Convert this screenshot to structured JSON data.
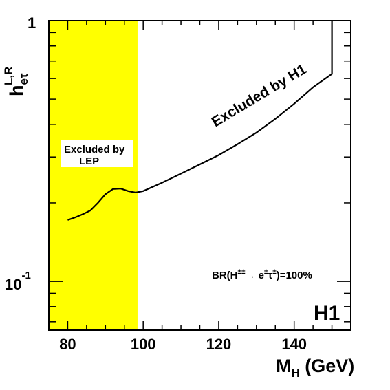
{
  "chart_data": {
    "type": "line",
    "xlabel": {
      "main": "M",
      "sub": "H",
      "suffix": " (GeV)"
    },
    "ylabel": {
      "main": "h",
      "sub": "eτ",
      "sup": "L,R"
    },
    "xlim": [
      75,
      155
    ],
    "ylim": [
      0.065,
      1.0
    ],
    "yscale": "log",
    "x_ticks": [
      80,
      100,
      120,
      140
    ],
    "x_tick_labels": [
      "80",
      "100",
      "120",
      "140"
    ],
    "y_major_labels": [
      {
        "value": 1.0,
        "base": "1",
        "exp": ""
      },
      {
        "value": 0.1,
        "base": "10",
        "exp": "-1"
      }
    ],
    "grid": false,
    "excluded_band": {
      "x_from": 75,
      "x_to": 98.5,
      "color": "#ffff00"
    },
    "series": [
      {
        "x": [
          80,
          82,
          84,
          86,
          88,
          90,
          92,
          94,
          96,
          98,
          100,
          105,
          110,
          115,
          120,
          125,
          130,
          135,
          140,
          145,
          150,
          150,
          150
        ],
        "y": [
          0.172,
          0.176,
          0.181,
          0.187,
          0.2,
          0.216,
          0.226,
          0.227,
          0.222,
          0.219,
          0.222,
          0.239,
          0.259,
          0.281,
          0.305,
          0.336,
          0.372,
          0.42,
          0.48,
          0.555,
          0.625,
          0.8,
          1.0
        ],
        "color": "#000000"
      }
    ],
    "annotations": {
      "excluded_lep_line1": "Excluded by",
      "excluded_lep_line2": "LEP",
      "excluded_h1": "Excluded by H1",
      "br_prefix": "BR(H",
      "br_h_sup": "±±",
      "br_arrow": "→ e",
      "br_e_sup": "±",
      "br_tau": "τ",
      "br_tau_sup": "±",
      "br_suffix": ")=100%",
      "logo": "H1"
    }
  }
}
